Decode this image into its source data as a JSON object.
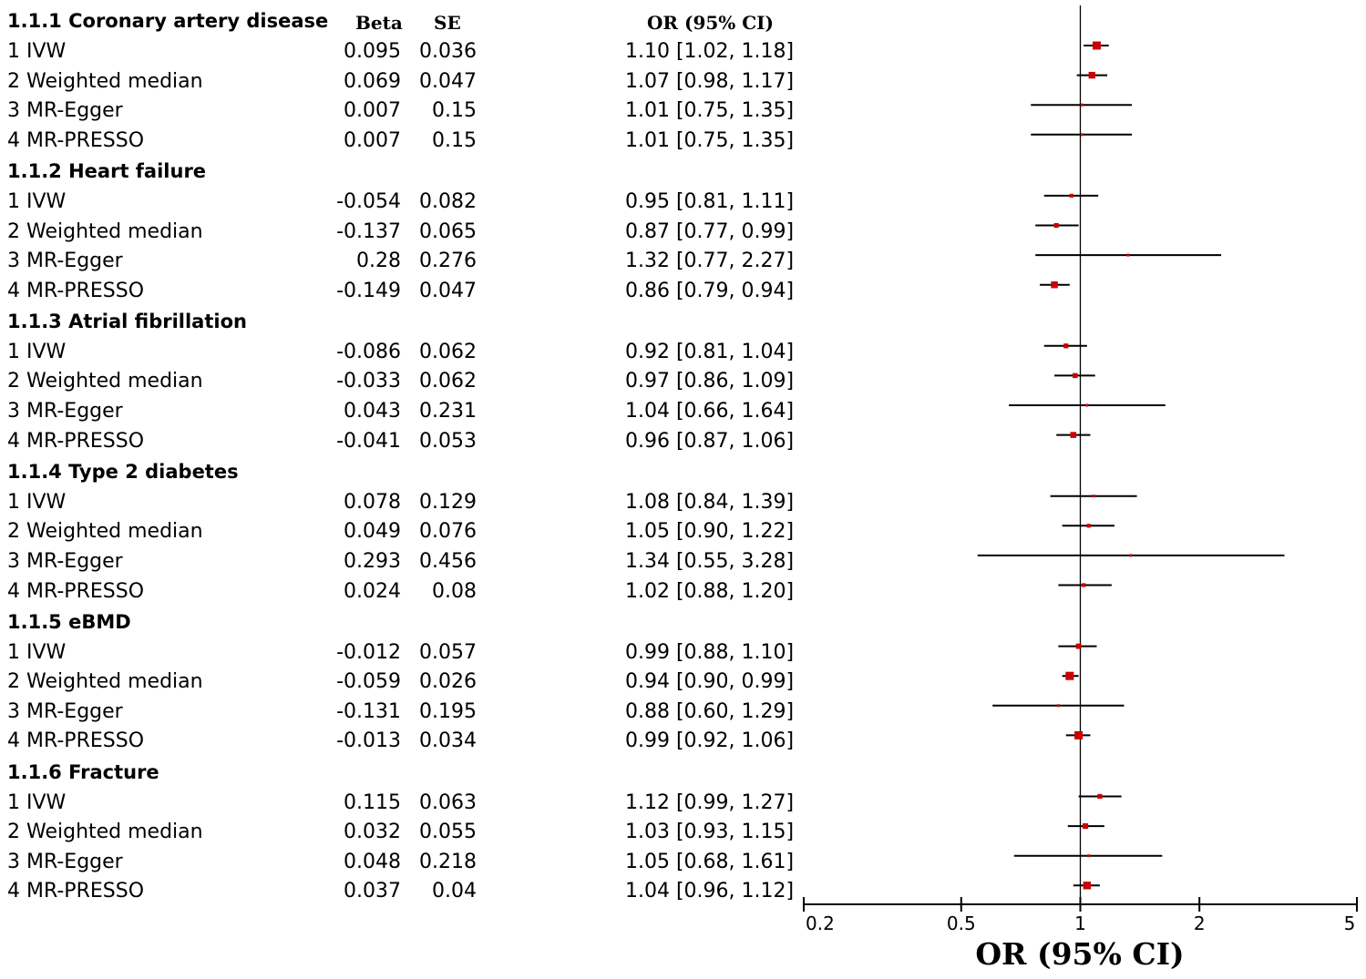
{
  "table": {
    "header": {
      "beta": "Beta",
      "se": "SE",
      "or": "OR (95% CI)"
    }
  },
  "chart_data": {
    "type": "forest",
    "scale": "log",
    "xlabel": "OR (95% CI)",
    "xlim": [
      0.2,
      5
    ],
    "ticks": [
      {
        "value": 0.2,
        "label": "0.2"
      },
      {
        "value": 0.5,
        "label": "0.5"
      },
      {
        "value": 1,
        "label": "1"
      },
      {
        "value": 2,
        "label": "2"
      },
      {
        "value": 5,
        "label": "5"
      }
    ],
    "reference_line": 1,
    "point_color": "#cc0000",
    "line_color": "#000000",
    "groups": [
      {
        "title": "1.1.1 Coronary artery disease",
        "rows": [
          {
            "method": "1 IVW",
            "beta": "0.095",
            "se": "0.036",
            "or_text": "1.10 [1.02, 1.18]",
            "or": 1.1,
            "lo": 1.02,
            "hi": 1.18
          },
          {
            "method": "2 Weighted median",
            "beta": "0.069",
            "se": "0.047",
            "or_text": "1.07 [0.98, 1.17]",
            "or": 1.07,
            "lo": 0.98,
            "hi": 1.17
          },
          {
            "method": "3 MR-Egger",
            "beta": "0.007",
            "se": "0.15",
            "or_text": "1.01 [0.75, 1.35]",
            "or": 1.01,
            "lo": 0.75,
            "hi": 1.35
          },
          {
            "method": "4 MR-PRESSO",
            "beta": "0.007",
            "se": "0.15",
            "or_text": "1.01 [0.75, 1.35]",
            "or": 1.01,
            "lo": 0.75,
            "hi": 1.35
          }
        ]
      },
      {
        "title": "1.1.2 Heart failure",
        "rows": [
          {
            "method": "1 IVW",
            "beta": "-0.054",
            "se": "0.082",
            "or_text": "0.95 [0.81, 1.11]",
            "or": 0.95,
            "lo": 0.81,
            "hi": 1.11
          },
          {
            "method": "2 Weighted median",
            "beta": "-0.137",
            "se": "0.065",
            "or_text": "0.87 [0.77, 0.99]",
            "or": 0.87,
            "lo": 0.77,
            "hi": 0.99
          },
          {
            "method": "3 MR-Egger",
            "beta": "0.28",
            "se": "0.276",
            "or_text": "1.32 [0.77, 2.27]",
            "or": 1.32,
            "lo": 0.77,
            "hi": 2.27
          },
          {
            "method": "4 MR-PRESSO",
            "beta": "-0.149",
            "se": "0.047",
            "or_text": "0.86 [0.79, 0.94]",
            "or": 0.86,
            "lo": 0.79,
            "hi": 0.94
          }
        ]
      },
      {
        "title": "1.1.3 Atrial fibrillation",
        "rows": [
          {
            "method": "1 IVW",
            "beta": "-0.086",
            "se": "0.062",
            "or_text": "0.92 [0.81, 1.04]",
            "or": 0.92,
            "lo": 0.81,
            "hi": 1.04
          },
          {
            "method": "2 Weighted median",
            "beta": "-0.033",
            "se": "0.062",
            "or_text": "0.97 [0.86, 1.09]",
            "or": 0.97,
            "lo": 0.86,
            "hi": 1.09
          },
          {
            "method": "3 MR-Egger",
            "beta": "0.043",
            "se": "0.231",
            "or_text": "1.04 [0.66, 1.64]",
            "or": 1.04,
            "lo": 0.66,
            "hi": 1.64
          },
          {
            "method": "4 MR-PRESSO",
            "beta": "-0.041",
            "se": "0.053",
            "or_text": "0.96 [0.87, 1.06]",
            "or": 0.96,
            "lo": 0.87,
            "hi": 1.06
          }
        ]
      },
      {
        "title": "1.1.4 Type 2 diabetes",
        "rows": [
          {
            "method": "1 IVW",
            "beta": "0.078",
            "se": "0.129",
            "or_text": "1.08 [0.84, 1.39]",
            "or": 1.08,
            "lo": 0.84,
            "hi": 1.39
          },
          {
            "method": "2 Weighted median",
            "beta": "0.049",
            "se": "0.076",
            "or_text": "1.05 [0.90, 1.22]",
            "or": 1.05,
            "lo": 0.9,
            "hi": 1.22
          },
          {
            "method": "3 MR-Egger",
            "beta": "0.293",
            "se": "0.456",
            "or_text": "1.34 [0.55, 3.28]",
            "or": 1.34,
            "lo": 0.55,
            "hi": 3.28
          },
          {
            "method": "4 MR-PRESSO",
            "beta": "0.024",
            "se": "0.08",
            "or_text": "1.02 [0.88, 1.20]",
            "or": 1.02,
            "lo": 0.88,
            "hi": 1.2
          }
        ]
      },
      {
        "title": "1.1.5 eBMD",
        "rows": [
          {
            "method": "1 IVW",
            "beta": "-0.012",
            "se": "0.057",
            "or_text": "0.99 [0.88, 1.10]",
            "or": 0.99,
            "lo": 0.88,
            "hi": 1.1
          },
          {
            "method": "2 Weighted median",
            "beta": "-0.059",
            "se": "0.026",
            "or_text": "0.94 [0.90, 0.99]",
            "or": 0.94,
            "lo": 0.9,
            "hi": 0.99
          },
          {
            "method": "3 MR-Egger",
            "beta": "-0.131",
            "se": "0.195",
            "or_text": "0.88 [0.60, 1.29]",
            "or": 0.88,
            "lo": 0.6,
            "hi": 1.29
          },
          {
            "method": "4 MR-PRESSO",
            "beta": "-0.013",
            "se": "0.034",
            "or_text": "0.99 [0.92, 1.06]",
            "or": 0.99,
            "lo": 0.92,
            "hi": 1.06
          }
        ]
      },
      {
        "title": "1.1.6 Fracture",
        "rows": [
          {
            "method": "1 IVW",
            "beta": "0.115",
            "se": "0.063",
            "or_text": "1.12 [0.99, 1.27]",
            "or": 1.12,
            "lo": 0.99,
            "hi": 1.27
          },
          {
            "method": "2 Weighted median",
            "beta": "0.032",
            "se": "0.055",
            "or_text": "1.03 [0.93, 1.15]",
            "or": 1.03,
            "lo": 0.93,
            "hi": 1.15
          },
          {
            "method": "3 MR-Egger",
            "beta": "0.048",
            "se": "0.218",
            "or_text": "1.05 [0.68, 1.61]",
            "or": 1.05,
            "lo": 0.68,
            "hi": 1.61
          },
          {
            "method": "4 MR-PRESSO",
            "beta": "0.037",
            "se": "0.04",
            "or_text": "1.04 [0.96, 1.12]",
            "or": 1.04,
            "lo": 0.96,
            "hi": 1.12
          }
        ]
      }
    ]
  }
}
